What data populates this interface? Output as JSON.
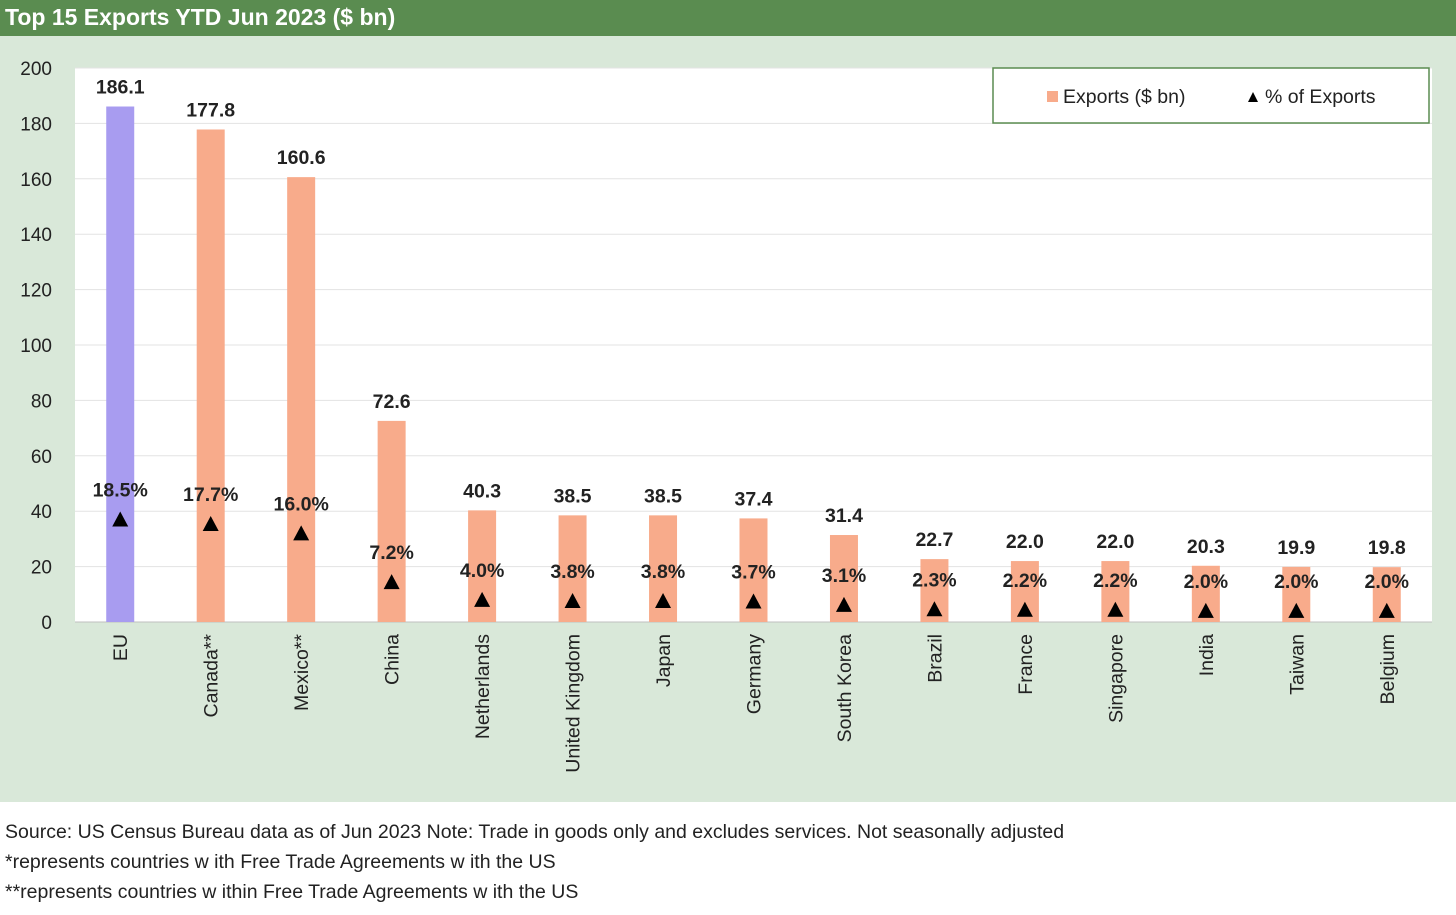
{
  "title": "Top 15 Exports YTD Jun 2023 ($ bn)",
  "colors": {
    "header_bg": "#5a8c50",
    "frame_bg": "#d9e8d9",
    "eu_bar": "#a89cf0",
    "bar": "#f8ab8b",
    "marker": "#000000"
  },
  "chart_data": {
    "type": "bar",
    "title": "Top 15 Exports YTD Jun 2023 ($ bn)",
    "categories": [
      "EU",
      "Canada**",
      "Mexico**",
      "China",
      "Netherlands",
      "United Kingdom",
      "Japan",
      "Germany",
      "South Korea",
      "Brazil",
      "France",
      "Singapore",
      "India",
      "Taiwan",
      "Belgium"
    ],
    "series": [
      {
        "name": "Exports ($ bn)",
        "kind": "bar",
        "values": [
          186.1,
          177.8,
          160.6,
          72.6,
          40.3,
          38.5,
          38.5,
          37.4,
          31.4,
          22.7,
          22.0,
          22.0,
          20.3,
          19.9,
          19.8
        ],
        "labels": [
          "186.1",
          "177.8",
          "160.6",
          "72.6",
          "40.3",
          "38.5",
          "38.5",
          "37.4",
          "31.4",
          "22.7",
          "22.0",
          "22.0",
          "20.3",
          "19.9",
          "19.8"
        ]
      },
      {
        "name": "% of Exports",
        "kind": "marker-triangle",
        "values": [
          18.5,
          17.7,
          16.0,
          7.2,
          4.0,
          3.8,
          3.8,
          3.7,
          3.1,
          2.3,
          2.2,
          2.2,
          2.0,
          2.0,
          2.0
        ],
        "labels": [
          "18.5%",
          "17.7%",
          "16.0%",
          "7.2%",
          "4.0%",
          "3.8%",
          "3.8%",
          "3.7%",
          "3.1%",
          "2.3%",
          "2.2%",
          "2.2%",
          "2.0%",
          "2.0%",
          "2.0%"
        ]
      }
    ],
    "highlight_category": "EU",
    "yticks": [
      "0",
      "20",
      "40",
      "60",
      "80",
      "100",
      "120",
      "140",
      "160",
      "180",
      "200"
    ],
    "ylim": [
      0,
      200
    ],
    "xlabel": "",
    "ylabel": "",
    "grid": true,
    "legend": {
      "position": "top-right",
      "entries": [
        "Exports ($ bn)",
        "% of Exports"
      ]
    }
  },
  "footer": {
    "source": "Source: US Census Bureau data as of Jun 2023 Note: Trade in goods only and excludes services. Not seasonally adjusted",
    "note1": "*represents countries w ith Free Trade Agreements w ith the US",
    "note2": "**represents countries w ithin Free Trade Agreements w ith the US"
  }
}
